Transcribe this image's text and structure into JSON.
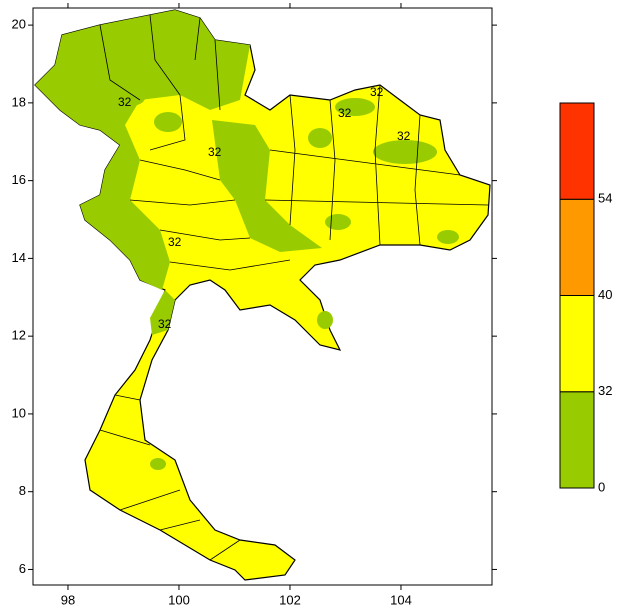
{
  "map": {
    "axes": {
      "xlim": [
        97.37,
        105.64
      ],
      "ylim": [
        5.6,
        20.44
      ],
      "xticks": [
        98,
        100,
        102,
        104
      ],
      "yticks": [
        6,
        8,
        10,
        12,
        14,
        16,
        18,
        20
      ]
    },
    "colorbar": {
      "levels": [
        0,
        32,
        40,
        54
      ],
      "colors": [
        "#99cc00",
        "#ffff00",
        "#ff9900",
        "#ff3300"
      ]
    },
    "contour_labels": [
      "32",
      "32",
      "32",
      "32",
      "32",
      "32",
      "32"
    ]
  }
}
